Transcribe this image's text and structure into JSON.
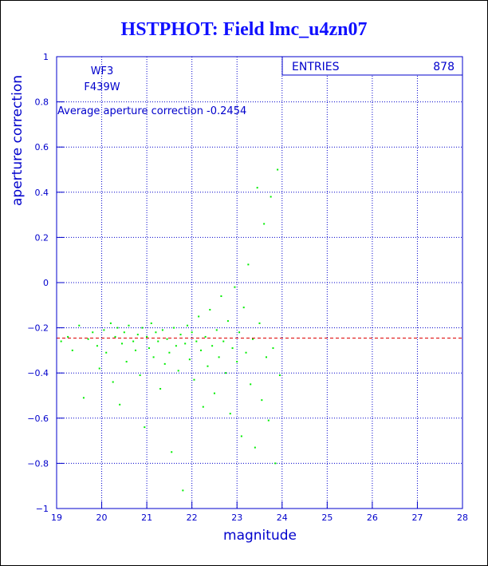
{
  "title": "HSTPHOT: Field lmc_u4zn07",
  "labels": {
    "camera": "WF3",
    "filter": "F439W",
    "average": "Average aperture correction -0.2454"
  },
  "stats": {
    "label": "ENTRIES",
    "value": "878"
  },
  "colors": {
    "axis": "#0000cc",
    "grid": "#0000cc",
    "points": "#00ee00",
    "mean_line": "#dd0000",
    "title": "#1010ff"
  },
  "chart_data": {
    "type": "scatter",
    "title": "HSTPHOT: Field lmc_u4zn07",
    "xlabel": "magnitude",
    "ylabel": "aperture correction",
    "xlim": [
      19,
      28
    ],
    "ylim": [
      -1,
      1
    ],
    "xticks": [
      "19",
      "20",
      "21",
      "22",
      "23",
      "24",
      "25",
      "26",
      "27",
      "28"
    ],
    "yticks": [
      "-1",
      "-0.8",
      "-0.6",
      "-0.4",
      "-0.2",
      "0",
      "0.2",
      "0.4",
      "0.6",
      "0.8",
      "1"
    ],
    "grid": true,
    "mean_line": -0.2454,
    "entries": 878,
    "points": [
      [
        19.1,
        -0.26
      ],
      [
        19.25,
        -0.24
      ],
      [
        19.35,
        -0.3
      ],
      [
        19.5,
        -0.19
      ],
      [
        19.6,
        -0.51
      ],
      [
        19.7,
        -0.25
      ],
      [
        19.8,
        -0.22
      ],
      [
        19.9,
        -0.28
      ],
      [
        19.95,
        -0.38
      ],
      [
        20.05,
        -0.21
      ],
      [
        20.1,
        -0.31
      ],
      [
        20.2,
        -0.18
      ],
      [
        20.25,
        -0.44
      ],
      [
        20.3,
        -0.24
      ],
      [
        20.35,
        -0.2
      ],
      [
        20.4,
        -0.54
      ],
      [
        20.45,
        -0.27
      ],
      [
        20.5,
        -0.22
      ],
      [
        20.55,
        -0.35
      ],
      [
        20.6,
        -0.19
      ],
      [
        20.7,
        -0.26
      ],
      [
        20.75,
        -0.3
      ],
      [
        20.8,
        -0.23
      ],
      [
        20.85,
        -0.41
      ],
      [
        20.9,
        -0.2
      ],
      [
        20.95,
        -0.64
      ],
      [
        21.0,
        -0.24
      ],
      [
        21.05,
        -0.29
      ],
      [
        21.1,
        -0.18
      ],
      [
        21.15,
        -0.33
      ],
      [
        21.2,
        -0.22
      ],
      [
        21.25,
        -0.26
      ],
      [
        21.3,
        -0.47
      ],
      [
        21.35,
        -0.21
      ],
      [
        21.4,
        -0.36
      ],
      [
        21.45,
        -0.25
      ],
      [
        21.5,
        -0.31
      ],
      [
        21.55,
        -0.75
      ],
      [
        21.6,
        -0.2
      ],
      [
        21.65,
        -0.28
      ],
      [
        21.7,
        -0.39
      ],
      [
        21.75,
        -0.23
      ],
      [
        21.8,
        -0.92
      ],
      [
        21.85,
        -0.27
      ],
      [
        21.9,
        -0.19
      ],
      [
        21.95,
        -0.34
      ],
      [
        22.0,
        -0.22
      ],
      [
        22.05,
        -0.43
      ],
      [
        22.1,
        -0.26
      ],
      [
        22.15,
        -0.15
      ],
      [
        22.2,
        -0.3
      ],
      [
        22.25,
        -0.55
      ],
      [
        22.3,
        -0.24
      ],
      [
        22.35,
        -0.37
      ],
      [
        22.4,
        -0.12
      ],
      [
        22.45,
        -0.28
      ],
      [
        22.5,
        -0.49
      ],
      [
        22.55,
        -0.21
      ],
      [
        22.6,
        -0.33
      ],
      [
        22.65,
        -0.06
      ],
      [
        22.7,
        -0.26
      ],
      [
        22.75,
        -0.4
      ],
      [
        22.8,
        -0.17
      ],
      [
        22.85,
        -0.58
      ],
      [
        22.9,
        -0.29
      ],
      [
        22.95,
        -0.02
      ],
      [
        23.0,
        -0.35
      ],
      [
        23.05,
        -0.22
      ],
      [
        23.1,
        -0.68
      ],
      [
        23.15,
        -0.11
      ],
      [
        23.2,
        -0.31
      ],
      [
        23.25,
        0.08
      ],
      [
        23.3,
        -0.45
      ],
      [
        23.35,
        -0.25
      ],
      [
        23.4,
        -0.73
      ],
      [
        23.45,
        0.42
      ],
      [
        23.5,
        -0.18
      ],
      [
        23.55,
        -0.52
      ],
      [
        23.6,
        0.26
      ],
      [
        23.65,
        -0.33
      ],
      [
        23.7,
        -0.61
      ],
      [
        23.75,
        0.38
      ],
      [
        23.8,
        -0.29
      ],
      [
        23.85,
        -0.8
      ],
      [
        23.9,
        0.5
      ],
      [
        23.95,
        -0.41
      ]
    ]
  }
}
